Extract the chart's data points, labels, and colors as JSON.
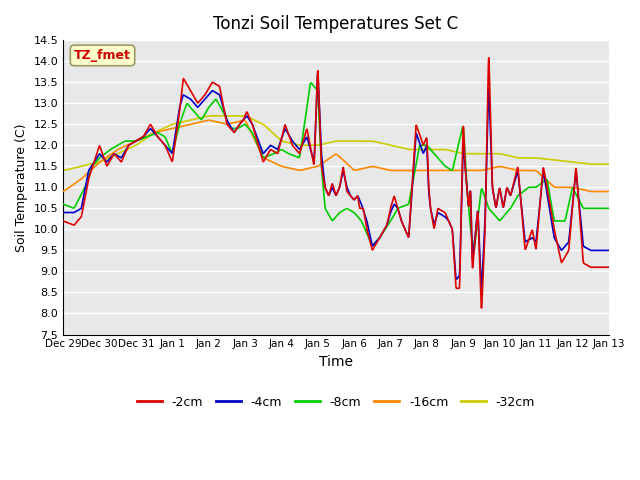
{
  "title": "Tonzi Soil Temperatures Set C",
  "xlabel": "Time",
  "ylabel": "Soil Temperature (C)",
  "ylim": [
    7.5,
    14.5
  ],
  "plot_bg_color": "#e8e8e8",
  "legend_label": "TZ_fmet",
  "series_labels": [
    "-2cm",
    "-4cm",
    "-8cm",
    "-16cm",
    "-32cm"
  ],
  "series_colors": [
    "#dd0000",
    "#0000cc",
    "#00cc00",
    "#ff8800",
    "#cccc00"
  ],
  "xtick_labels": [
    "Dec 29",
    "Dec 30",
    "Dec 31",
    "Jan 1",
    "Jan 2",
    "Jan 3",
    "Jan 4",
    "Jan 5",
    "Jan 6",
    "Jan 7",
    "Jan 8",
    "Jan 9",
    "Jan 10",
    "Jan 11",
    "Jan 12",
    "Jan 13"
  ],
  "ytick_vals": [
    7.5,
    8.0,
    8.5,
    9.0,
    9.5,
    10.0,
    10.5,
    11.0,
    11.5,
    12.0,
    12.5,
    13.0,
    13.5,
    14.0,
    14.5
  ]
}
